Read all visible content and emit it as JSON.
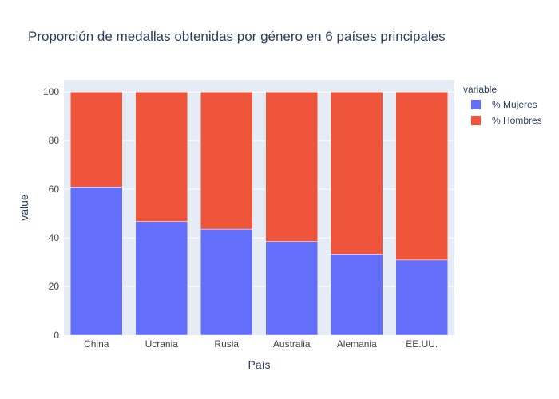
{
  "chart_data": {
    "type": "bar",
    "barmode": "stack",
    "title": "Proporción de medallas obtenidas por género en 6 países principales",
    "xlabel": "País",
    "ylabel": "value",
    "categories": [
      "China",
      "Ucrania",
      "Rusia",
      "Australia",
      "Alemania",
      "EE.UU."
    ],
    "ylim": [
      0,
      105
    ],
    "yticks": [
      0,
      20,
      40,
      60,
      80,
      100
    ],
    "grid": true,
    "legend": {
      "title": "variable",
      "position": "top-right"
    },
    "series": [
      {
        "name": "% Mujeres",
        "color": "#636efa",
        "values": [
          60.9,
          46.7,
          43.6,
          38.5,
          33.3,
          30.9
        ]
      },
      {
        "name": "% Hombres",
        "color": "#ef553b",
        "values": [
          39.1,
          53.3,
          56.4,
          61.5,
          66.7,
          69.1
        ]
      }
    ],
    "colors": {
      "plot_background": "#e5ecf6",
      "grid": "#ffffff",
      "text": "#2a3f5f",
      "tick_text": "#444444"
    }
  }
}
